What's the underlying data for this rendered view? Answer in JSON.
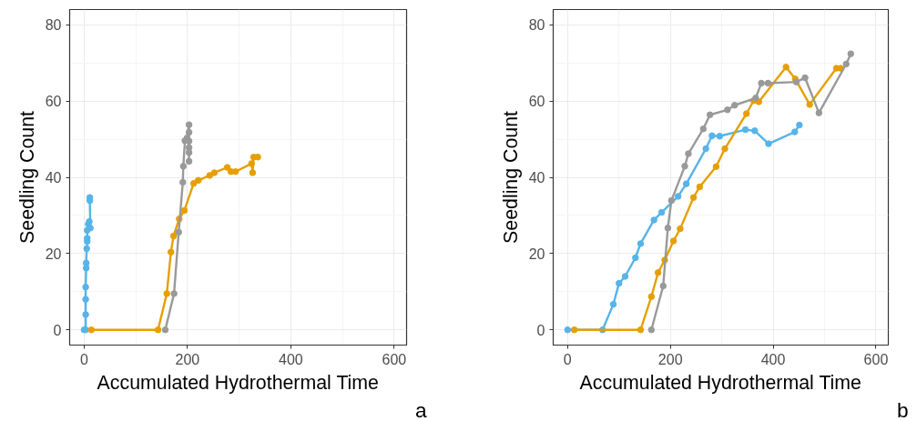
{
  "chart_data": [
    {
      "type": "line",
      "xlabel": "Accumulated Hydrothermal Time",
      "ylabel": "Seedling Count",
      "xlim": [
        -28,
        624
      ],
      "ylim": [
        -4,
        84
      ],
      "xticks": [
        0,
        200,
        400,
        600
      ],
      "yticks": [
        0,
        20,
        40,
        60,
        80
      ],
      "grid": true,
      "marker": "circle",
      "line_style": "solid",
      "annotations": [
        "a"
      ],
      "series": [
        {
          "color": "#56b4e9",
          "x": [
            0,
            3,
            3,
            3,
            3,
            4,
            4,
            5,
            6,
            6,
            6,
            8,
            10,
            12,
            11,
            11
          ],
          "values": [
            0,
            0,
            4,
            8,
            11.2,
            16.2,
            17.5,
            21.3,
            23.2,
            24,
            26.1,
            27.7,
            28.4,
            26.7,
            33.9,
            34.7
          ]
        },
        {
          "color": "#e69f00",
          "x": [
            14,
            143,
            160,
            168,
            173,
            184,
            194,
            212,
            221,
            243,
            252,
            277,
            284,
            293,
            324,
            326,
            328,
            336
          ],
          "values": [
            0,
            0,
            9.5,
            20.4,
            24.6,
            29.1,
            31.3,
            38.4,
            39.2,
            40.5,
            41.2,
            42.6,
            41.5,
            41.5,
            43.6,
            41.2,
            45.3,
            45.3
          ]
        },
        {
          "color": "#999999",
          "x": [
            157,
            174,
            183,
            191,
            192,
            195,
            199,
            203,
            203,
            203,
            203,
            203,
            203
          ],
          "values": [
            0,
            9.5,
            25.6,
            38.7,
            42.9,
            49.6,
            50.3,
            53.8,
            51.8,
            49.5,
            47.8,
            46.5,
            44.2
          ]
        }
      ]
    },
    {
      "type": "line",
      "xlabel": "Accumulated Hydrothermal Time",
      "ylabel": "Seedling Count",
      "xlim": [
        -28,
        624
      ],
      "ylim": [
        -4,
        84
      ],
      "xticks": [
        0,
        200,
        400,
        600
      ],
      "yticks": [
        0,
        20,
        40,
        60,
        80
      ],
      "grid": true,
      "marker": "circle",
      "line_style": "solid",
      "annotations": [
        "b"
      ],
      "series": [
        {
          "color": "#56b4e9",
          "x": [
            0,
            68,
            89,
            100,
            112,
            132,
            142,
            168,
            183,
            215,
            231,
            269,
            281,
            296,
            346,
            364,
            391,
            442,
            451
          ],
          "values": [
            0,
            0,
            6.7,
            12.2,
            14.0,
            18.9,
            22.6,
            28.8,
            30.8,
            35.0,
            38.3,
            47.5,
            50.9,
            50.8,
            52.5,
            52.2,
            48.8,
            51.9,
            53.7
          ]
        },
        {
          "color": "#e69f00",
          "x": [
            13,
            142,
            163,
            176,
            189,
            206,
            219,
            245,
            257,
            289,
            306,
            348,
            362,
            372,
            425,
            443,
            471,
            523,
            531
          ],
          "values": [
            0,
            0,
            8.7,
            15.0,
            18.3,
            23.3,
            26.5,
            34.7,
            37.5,
            42.8,
            47.5,
            56.7,
            60.1,
            59.8,
            68.9,
            65.8,
            59.1,
            68.6,
            68.6
          ]
        },
        {
          "color": "#999999",
          "x": [
            163,
            186,
            195,
            202,
            228,
            235,
            264,
            277,
            311,
            325,
            366,
            377,
            390,
            445,
            462,
            489,
            542,
            551
          ],
          "values": [
            0,
            11.5,
            26.7,
            33.9,
            42.9,
            46.2,
            52.7,
            56.4,
            57.7,
            58.9,
            60.8,
            64.7,
            64.7,
            65.0,
            66.1,
            56.9,
            69.7,
            72.4
          ]
        }
      ]
    }
  ]
}
